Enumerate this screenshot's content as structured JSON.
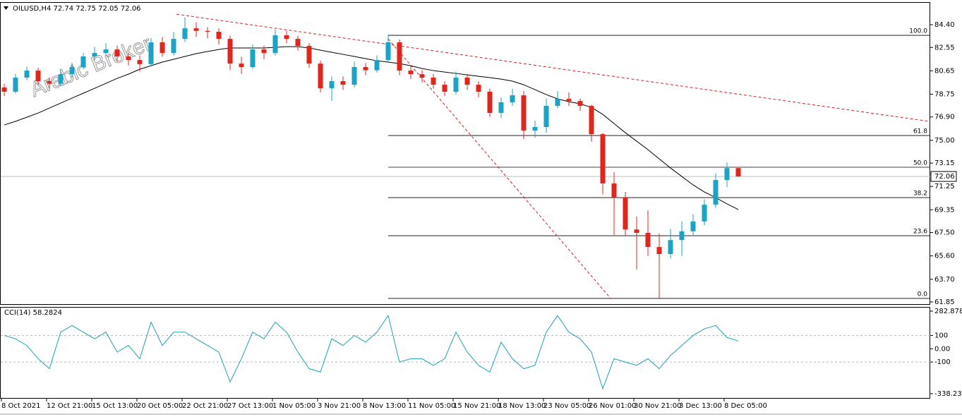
{
  "chart_data": {
    "type": "candlestick",
    "title": "OILUSD,H4  72.74 72.75 72.05 72.06",
    "watermark": "Arabic Broker",
    "up_color": "#1aa3c4",
    "down_color": "#e3261c",
    "ylim": [
      61.62,
      86.24
    ],
    "yticks": [
      {
        "value": 84.4,
        "label": "84.40"
      },
      82.55,
      80.65,
      78.75,
      {
        "value": 76.9,
        "label": "76.90"
      },
      {
        "value": 75,
        "label": "75.00"
      },
      73.15,
      71.25,
      69.35,
      {
        "value": 67.5,
        "label": "67.50"
      },
      {
        "value": 65.6,
        "label": "65.60"
      },
      {
        "value": 63.7,
        "label": "63.70"
      },
      61.85
    ],
    "xticks": [
      {
        "value": 0,
        "label": "8 Oct 2021"
      },
      {
        "value": 4,
        "label": "12 Oct 21:00"
      },
      {
        "value": 8,
        "label": "15 Oct 13:00"
      },
      {
        "value": 12,
        "label": "20 Oct 05:00"
      },
      {
        "value": 16,
        "label": "22 Oct 21:00"
      },
      {
        "value": 20,
        "label": "27 Oct 13:00"
      },
      {
        "value": 24,
        "label": "1 Nov 05:00"
      },
      {
        "value": 28,
        "label": "3 Nov 21:00"
      },
      {
        "value": 32,
        "label": "8 Nov 13:00"
      },
      {
        "value": 36,
        "label": "11 Nov 05:00"
      },
      {
        "value": 40,
        "label": "15 Nov 21:00"
      },
      {
        "value": 44,
        "label": "18 Nov 13:00"
      },
      {
        "value": 48,
        "label": "23 Nov 05:00"
      },
      {
        "value": 52,
        "label": "26 Nov 01:00"
      },
      {
        "value": 56,
        "label": "30 Nov 21:00"
      },
      {
        "value": 60,
        "label": "3 Dec 13:00"
      },
      {
        "value": 64,
        "label": "8 Dec 05:00"
      }
    ],
    "candles": [
      [
        79.3,
        79.6,
        78.6,
        78.95
      ],
      [
        78.95,
        80.4,
        78.8,
        80.1
      ],
      [
        80.1,
        81.0,
        79.9,
        80.67
      ],
      [
        80.67,
        80.9,
        79.5,
        79.81
      ],
      [
        79.81,
        80.1,
        79.2,
        79.6
      ],
      [
        79.6,
        80.7,
        79.4,
        80.38
      ],
      [
        80.38,
        81.3,
        80.1,
        80.96
      ],
      [
        80.96,
        82.1,
        80.8,
        81.82
      ],
      [
        81.82,
        82.6,
        81.5,
        82.1
      ],
      [
        82.1,
        82.9,
        81.9,
        82.39
      ],
      [
        82.39,
        82.7,
        81.4,
        81.82
      ],
      [
        81.82,
        82.1,
        81.1,
        81.53
      ],
      [
        81.53,
        81.9,
        80.6,
        81.2
      ],
      [
        81.2,
        83.3,
        81.0,
        82.97
      ],
      [
        82.97,
        83.4,
        81.8,
        82.1
      ],
      [
        82.1,
        83.8,
        81.9,
        83.25
      ],
      [
        83.25,
        85.0,
        83.0,
        84.11
      ],
      [
        84.11,
        84.6,
        83.4,
        83.9
      ],
      [
        83.9,
        84.2,
        83.3,
        83.83
      ],
      [
        83.83,
        84.1,
        82.8,
        83.25
      ],
      [
        83.25,
        83.5,
        80.7,
        81.24
      ],
      [
        81.24,
        81.8,
        80.4,
        80.96
      ],
      [
        80.96,
        82.8,
        80.8,
        82.39
      ],
      [
        82.39,
        82.7,
        81.6,
        82.1
      ],
      [
        82.1,
        84.0,
        81.9,
        83.54
      ],
      [
        83.54,
        83.9,
        82.9,
        83.25
      ],
      [
        83.25,
        83.5,
        82.3,
        82.68
      ],
      [
        82.68,
        82.9,
        80.9,
        81.24
      ],
      [
        81.24,
        81.5,
        78.9,
        79.23
      ],
      [
        79.23,
        80.2,
        78.2,
        79.81
      ],
      [
        79.81,
        80.2,
        79.1,
        79.52
      ],
      [
        79.52,
        81.4,
        79.3,
        80.96
      ],
      [
        80.96,
        81.3,
        80.3,
        80.7
      ],
      [
        80.7,
        81.9,
        80.5,
        81.53
      ],
      [
        81.53,
        83.6,
        81.3,
        82.97
      ],
      [
        82.97,
        83.2,
        80.3,
        80.67
      ],
      [
        80.67,
        81.1,
        80.0,
        80.38
      ],
      [
        80.38,
        80.7,
        79.7,
        80.1
      ],
      [
        80.1,
        80.4,
        79.2,
        79.52
      ],
      [
        79.52,
        79.8,
        78.6,
        78.95
      ],
      [
        78.95,
        80.6,
        78.7,
        80.1
      ],
      [
        80.1,
        80.4,
        79.1,
        79.52
      ],
      [
        79.52,
        79.8,
        78.5,
        78.95
      ],
      [
        78.95,
        79.2,
        76.9,
        77.23
      ],
      [
        77.23,
        78.5,
        76.8,
        78.09
      ],
      [
        78.09,
        79.2,
        77.8,
        78.66
      ],
      [
        78.66,
        79.0,
        75.1,
        75.79
      ],
      [
        75.79,
        76.6,
        75.2,
        76.08
      ],
      [
        76.08,
        78.4,
        75.6,
        77.8
      ],
      [
        77.8,
        79.0,
        77.6,
        78.37
      ],
      [
        78.37,
        78.9,
        77.8,
        78.2
      ],
      [
        78.2,
        78.4,
        77.4,
        77.8
      ],
      [
        77.8,
        77.9,
        74.9,
        75.5
      ],
      [
        75.5,
        75.6,
        70.6,
        71.49
      ],
      [
        71.49,
        72.4,
        67.3,
        70.34
      ],
      [
        70.34,
        70.8,
        67.2,
        67.75
      ],
      [
        67.75,
        68.8,
        64.5,
        67.47
      ],
      [
        67.47,
        69.3,
        65.6,
        66.32
      ],
      [
        66.32,
        67.4,
        62.1,
        65.75
      ],
      [
        65.75,
        67.8,
        65.4,
        66.89
      ],
      [
        66.89,
        68.4,
        65.6,
        67.6
      ],
      [
        67.6,
        69.0,
        67.3,
        68.4
      ],
      [
        68.4,
        70.2,
        68.1,
        69.76
      ],
      [
        69.76,
        72.3,
        69.5,
        71.77
      ],
      [
        71.77,
        73.2,
        71.2,
        72.74
      ],
      [
        72.74,
        72.75,
        72.05,
        72.06
      ]
    ],
    "ma": {
      "color": "#000000",
      "values": [
        76.25,
        76.54,
        76.88,
        77.22,
        77.62,
        78.03,
        78.43,
        78.83,
        79.23,
        79.63,
        80.04,
        80.38,
        80.78,
        81.07,
        81.36,
        81.59,
        81.82,
        82.05,
        82.22,
        82.39,
        82.51,
        82.51,
        82.51,
        82.51,
        82.56,
        82.62,
        82.62,
        82.51,
        82.33,
        82.16,
        81.99,
        81.82,
        81.64,
        81.47,
        81.36,
        81.24,
        81.07,
        80.84,
        80.67,
        80.55,
        80.44,
        80.32,
        80.21,
        80.1,
        79.98,
        79.81,
        79.52,
        79.12,
        78.72,
        78.37,
        78.14,
        77.97,
        77.68,
        77.11,
        76.36,
        75.62,
        74.93,
        74.24,
        73.49,
        72.75,
        72.06,
        71.37,
        70.8,
        70.34,
        69.83,
        69.37
      ]
    },
    "price_line_color": "#c0c0c0",
    "fibonacci": {
      "start": 34,
      "color": "#000000",
      "levels": [
        {
          "label": "100.0",
          "price": 83.54
        },
        {
          "label": "61.8",
          "price": 75.39
        },
        {
          "label": "50.0",
          "price": 72.81
        },
        {
          "label": "38.2",
          "price": 70.34
        },
        {
          "label": "23.6",
          "price": 67.24
        },
        {
          "label": "0.0",
          "price": 62.14
        }
      ]
    },
    "trendlines": [
      {
        "color": "#d42020",
        "points": [
          [
            15.25,
            85.26
          ],
          [
            82,
            76.53
          ]
        ]
      },
      {
        "color": "#d42020",
        "points": [
          [
            34,
            83.25
          ],
          [
            53.7,
            62.14
          ]
        ]
      }
    ],
    "cci": {
      "title": "CCI(14) 58.2824",
      "color": "#1f9fb3",
      "ylim": [
        -338.239,
        282.8785
      ],
      "yticks": [
        282.8785,
        100,
        {
          "value": 0,
          "label": "0.00"
        },
        -100,
        -338.239
      ],
      "levels": [
        100,
        -100
      ],
      "values": [
        100,
        75,
        25,
        -75,
        -150,
        125,
        175,
        125,
        75,
        125,
        -25,
        25,
        -75,
        200,
        25,
        125,
        125,
        75,
        25,
        -25,
        -250,
        -75,
        125,
        75,
        200,
        125,
        -25,
        -150,
        -175,
        75,
        25,
        100,
        50,
        125,
        250,
        -100,
        -75,
        -75,
        -125,
        -75,
        125,
        -25,
        -125,
        -175,
        50,
        -75,
        -150,
        -125,
        125,
        250,
        125,
        75,
        -25,
        -300,
        -75,
        -100,
        -125,
        -75,
        -150,
        -50,
        25,
        100,
        150,
        175,
        85,
        58.2824
      ]
    }
  }
}
